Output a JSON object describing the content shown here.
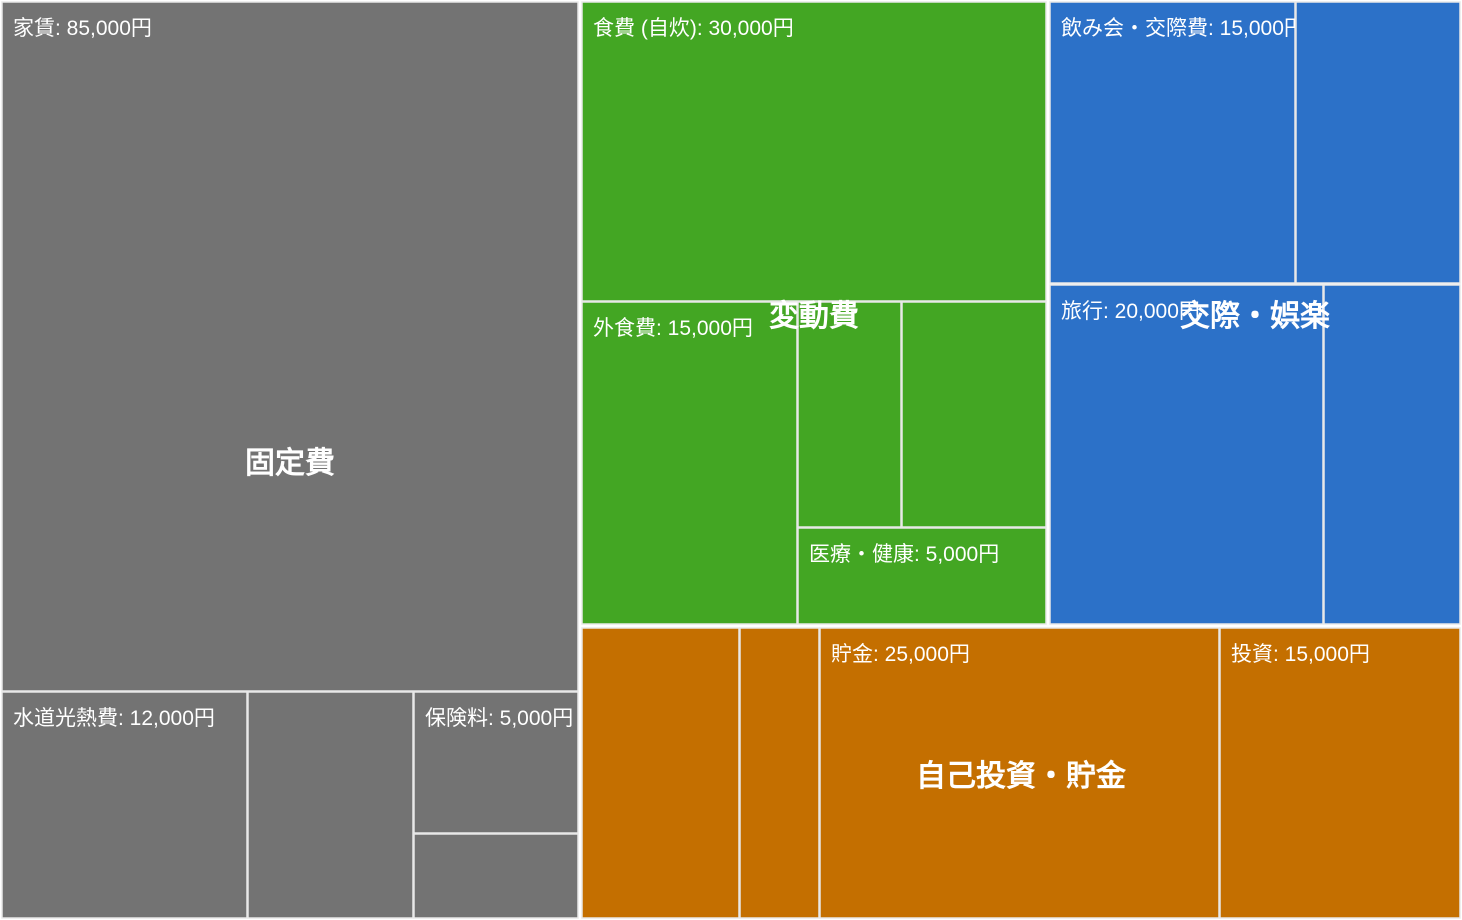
{
  "chart_data": {
    "type": "treemap",
    "groups": [
      {
        "name": "固定費",
        "color": "#737373",
        "leaves": [
          {
            "label": "家賃: 85,000円"
          },
          {
            "label": "水道光熱費: 12,000円"
          },
          {
            "label": ""
          },
          {
            "label": "保険料: 5,000円"
          },
          {
            "label": ""
          }
        ]
      },
      {
        "name": "変動費",
        "color": "#43a623",
        "leaves": [
          {
            "label": "食費 (自炊): 30,000円"
          },
          {
            "label": "外食費: 15,000円"
          },
          {
            "label": ""
          },
          {
            "label": ""
          },
          {
            "label": "医療・健康: 5,000円"
          }
        ]
      },
      {
        "name": "交際・娯楽",
        "color": "#2c71c8",
        "leaves": [
          {
            "label": "飲み会・交際費: 15,000円"
          },
          {
            "label": ""
          },
          {
            "label": "旅行: 20,000円"
          },
          {
            "label": ""
          }
        ]
      },
      {
        "name": "自己投資・貯金",
        "color": "#c46f00",
        "leaves": [
          {
            "label": ""
          },
          {
            "label": ""
          },
          {
            "label": "貯金: 25,000円"
          },
          {
            "label": "投資: 15,000円"
          }
        ]
      }
    ]
  }
}
